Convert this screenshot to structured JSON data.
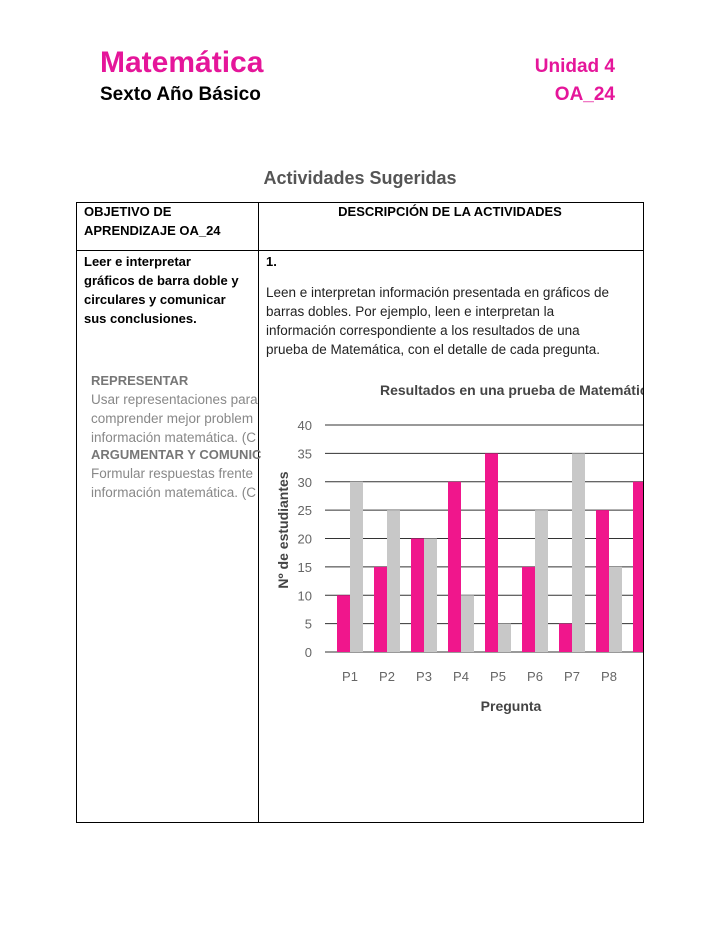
{
  "header": {
    "title": "Matemática",
    "subtitle": "Sexto Año Básico",
    "unit": "Unidad 4",
    "code": "OA_24"
  },
  "section_title": "Actividades Sugeridas",
  "table": {
    "headers": [
      [
        "OBJETIVO DE",
        "APRENDIZAJE OA_24"
      ],
      [
        "DESCRIPCIÓN DE LA ACTIVIDADES"
      ]
    ],
    "objective": [
      "Leer e interpretar",
      "gráficos de barra doble y",
      "circulares y comunicar",
      "sus conclusiones."
    ],
    "activity_number": "1.",
    "activity_text": [
      "Leen e interpretan información presentada en gráficos de",
      "barras dobles. Por ejemplo, leen e interpretan la",
      "información correspondiente a los resultados de una",
      "prueba de Matemática, con el detalle de cada pregunta."
    ]
  },
  "skills": [
    {
      "title": "REPRESENTAR",
      "lines": [
        "Usar representaciones para",
        "comprender mejor problem",
        "información matemática. (C"
      ]
    },
    {
      "title": "ARGUMENTAR Y COMUNIC",
      "lines": [
        "Formular respuestas frente",
        "información matemática. (C"
      ]
    }
  ],
  "chart_data": {
    "type": "bar",
    "title": "Resultados en una prueba de Matemática",
    "x_label": "Pregunta",
    "y_label": "Nº de estudiantes",
    "categories": [
      "P1",
      "P2",
      "P3",
      "P4",
      "P5",
      "P6",
      "P7",
      "P8",
      null
    ],
    "series": [
      {
        "color": "#f0168c",
        "values": [
          10,
          15,
          20,
          30,
          35,
          15,
          5,
          25,
          30
        ]
      },
      {
        "color": "#c8c8c8",
        "values": [
          30,
          25,
          20,
          10,
          5,
          25,
          35,
          15,
          null
        ]
      }
    ],
    "ylim": [
      0,
      40
    ],
    "yticks": [
      0,
      5,
      10,
      15,
      20,
      25,
      30,
      35,
      40
    ],
    "grid": true
  }
}
